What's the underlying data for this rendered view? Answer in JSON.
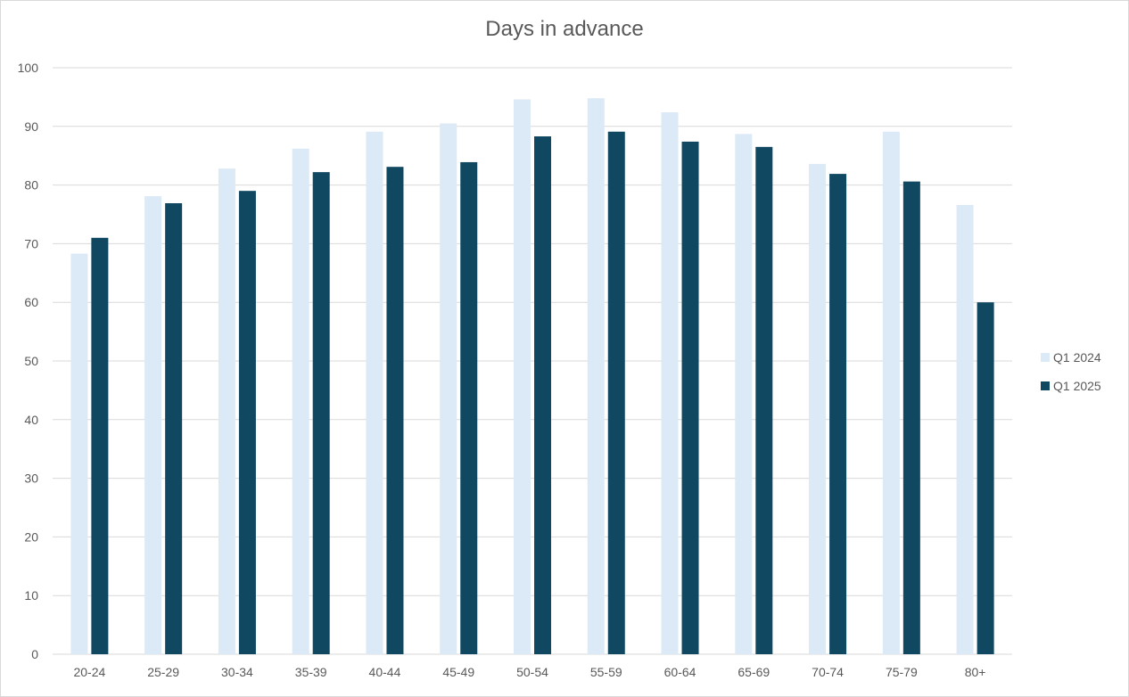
{
  "chart_data": {
    "type": "bar",
    "title": "Days in advance",
    "xlabel": "",
    "ylabel": "",
    "categories": [
      "20-24",
      "25-29",
      "30-34",
      "35-39",
      "40-44",
      "45-49",
      "50-54",
      "55-59",
      "60-64",
      "65-69",
      "70-74",
      "75-79",
      "80+"
    ],
    "series": [
      {
        "name": "Q1 2024",
        "color": "#dce9f6",
        "values": [
          68.3,
          78.1,
          82.8,
          86.2,
          89.1,
          90.5,
          94.6,
          94.8,
          92.4,
          88.7,
          83.6,
          89.1,
          76.6
        ]
      },
      {
        "name": "Q1 2025",
        "color": "#104862",
        "values": [
          71.0,
          76.9,
          79.0,
          82.2,
          83.1,
          83.9,
          88.3,
          89.1,
          87.4,
          86.5,
          81.9,
          80.6,
          60.0
        ]
      }
    ],
    "ylim": [
      0,
      100
    ],
    "yticks": [
      0,
      10,
      20,
      30,
      40,
      50,
      60,
      70,
      80,
      90,
      100
    ],
    "grid": true,
    "gridline_color": "#d9d9d9",
    "legend_position": "right"
  }
}
